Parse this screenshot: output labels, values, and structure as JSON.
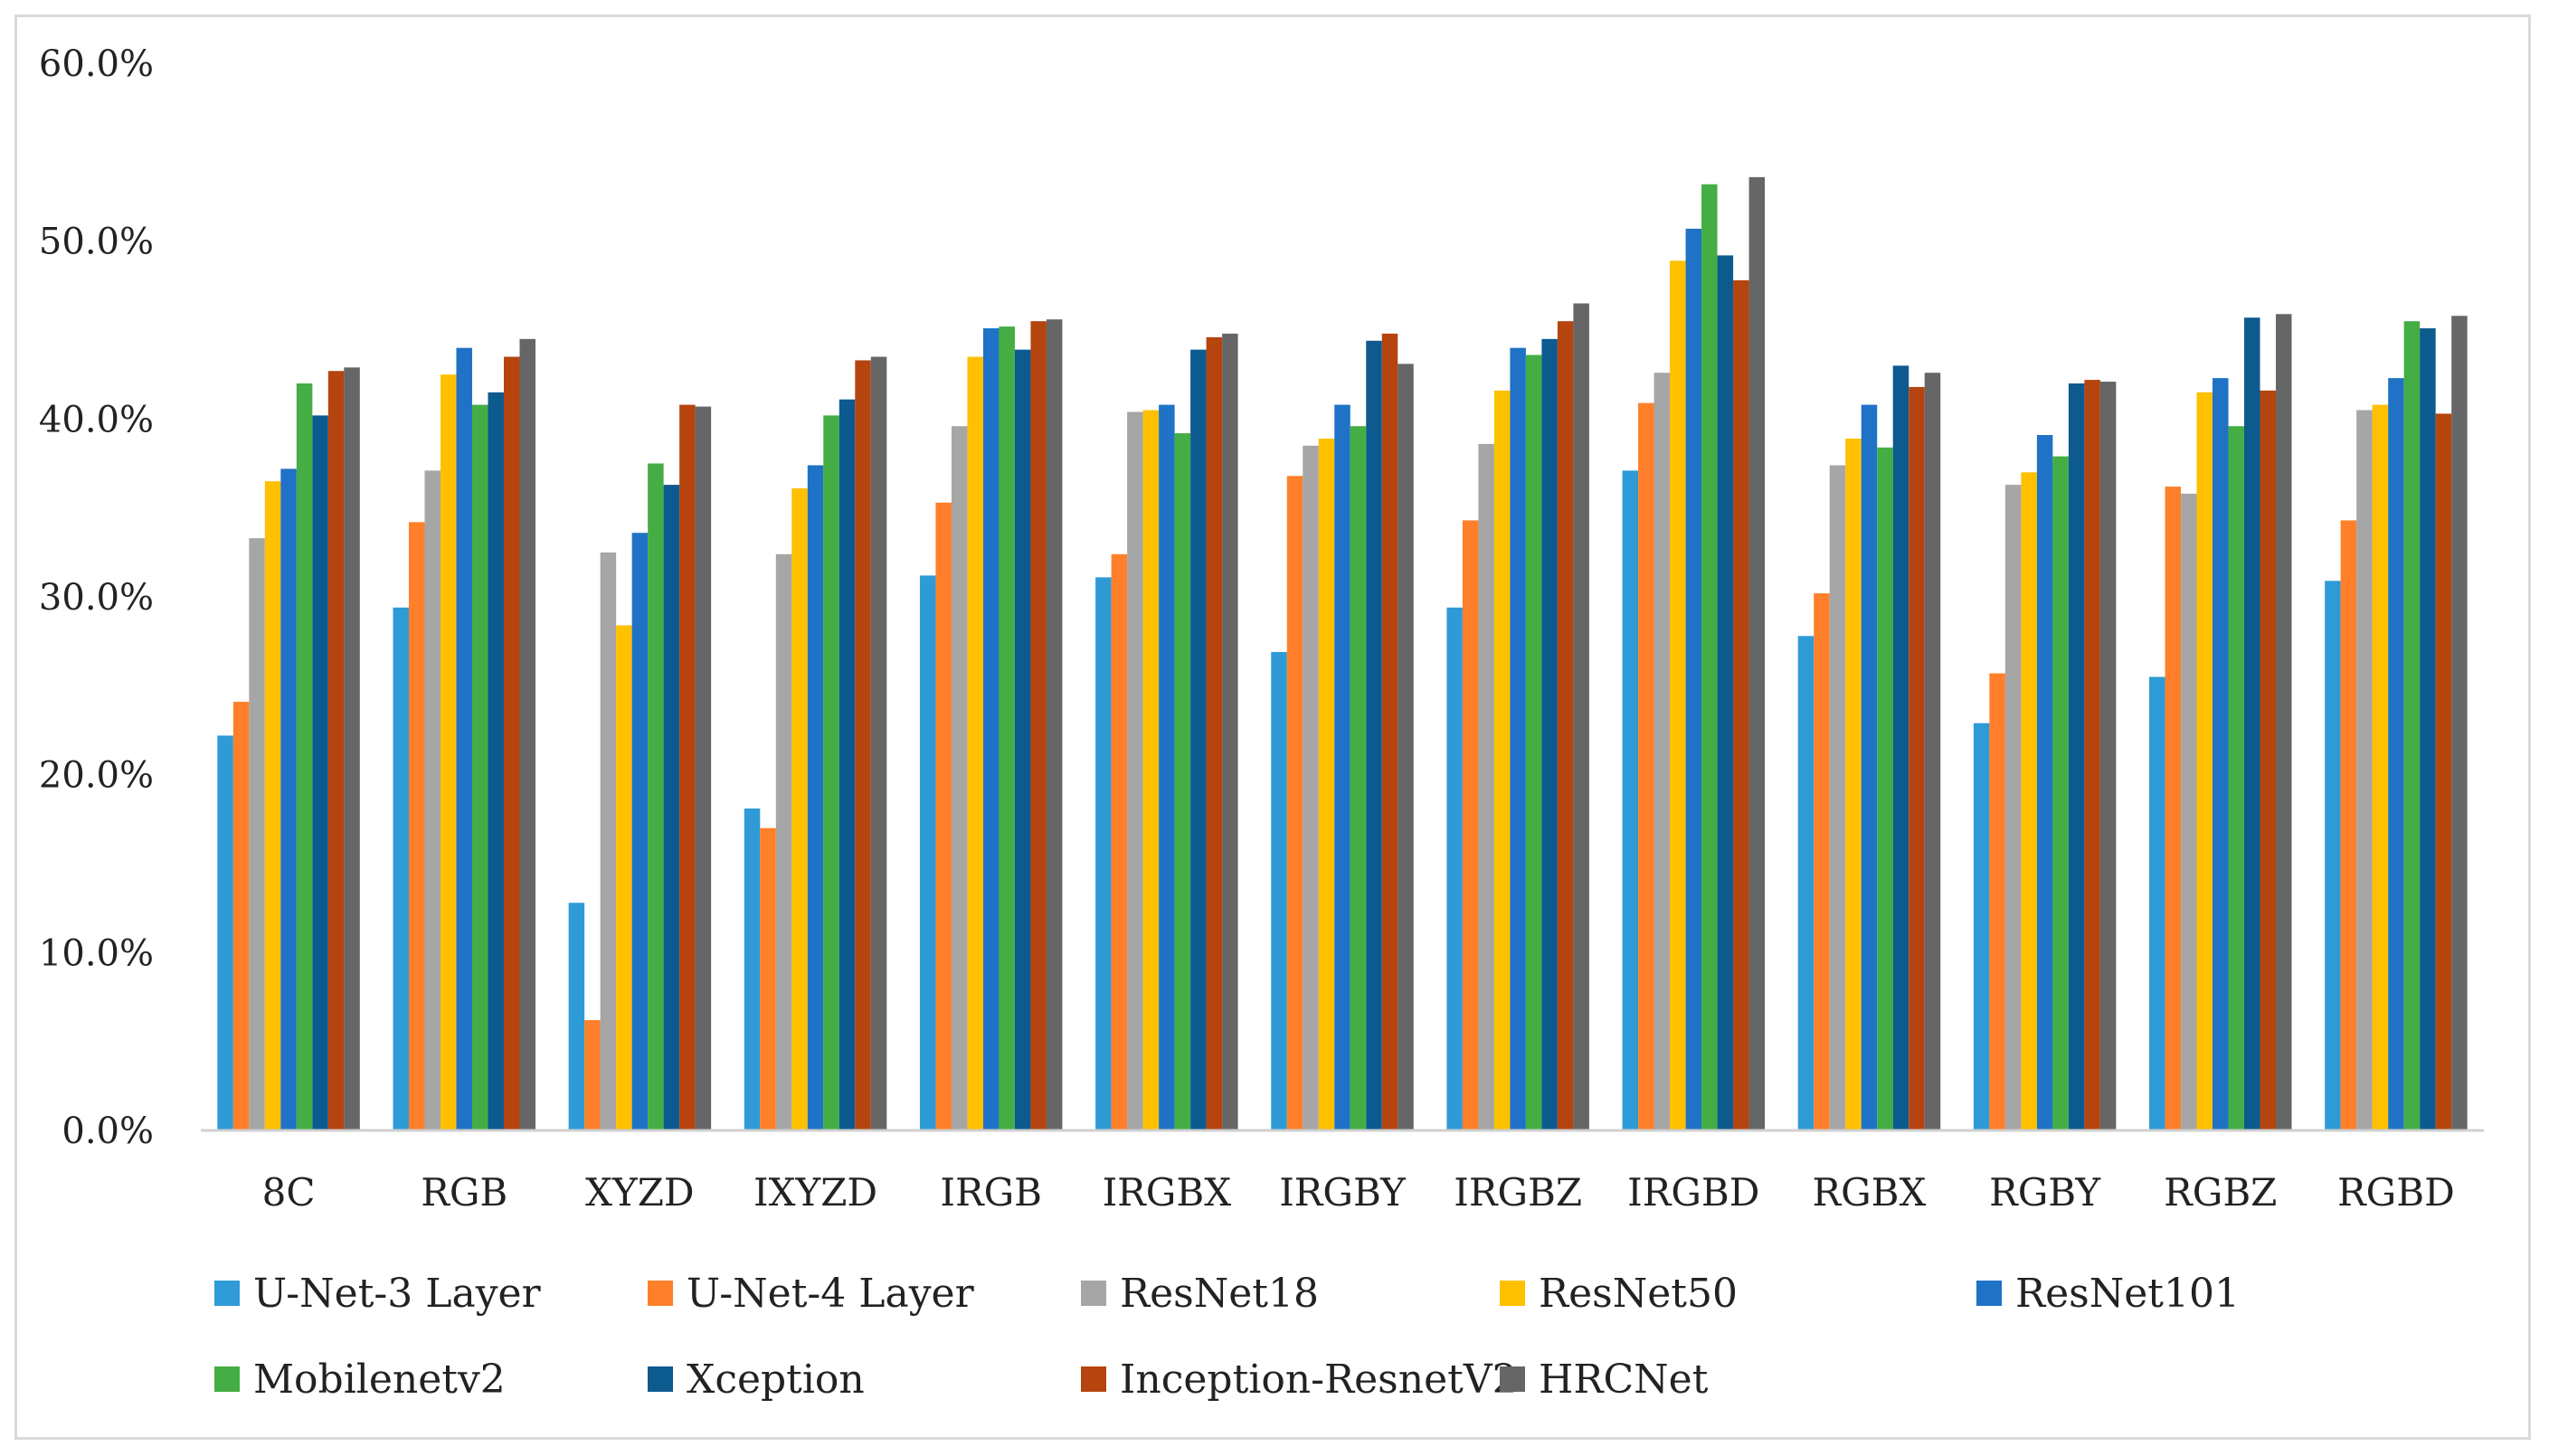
{
  "chart_data": {
    "type": "bar",
    "title": "",
    "xlabel": "",
    "ylabel": "",
    "ylim": [
      0,
      60
    ],
    "yticks": [
      "0.0%",
      "10.0%",
      "20.0%",
      "30.0%",
      "40.0%",
      "50.0%",
      "60.0%"
    ],
    "grid": false,
    "legend_position": "bottom",
    "categories": [
      "8C",
      "RGB",
      "XYZD",
      "IXYZD",
      "IRGB",
      "IRGBX",
      "IRGBY",
      "IRGBZ",
      "IRGBD",
      "RGBX",
      "RGBY",
      "RGBZ",
      "RGBD"
    ],
    "series": [
      {
        "name": "U-Net-3 Layer",
        "color": "#2e9bd6",
        "values": [
          22.2,
          29.4,
          12.8,
          18.1,
          31.2,
          31.1,
          26.9,
          29.4,
          37.1,
          27.8,
          22.9,
          25.5,
          30.9
        ]
      },
      {
        "name": "U-Net-4 Layer",
        "color": "#ff7f2a",
        "values": [
          24.1,
          34.2,
          6.2,
          17.0,
          35.3,
          32.4,
          36.8,
          34.3,
          40.9,
          30.2,
          25.7,
          36.2,
          34.3
        ]
      },
      {
        "name": "ResNet18",
        "color": "#a6a6a6",
        "values": [
          33.3,
          37.1,
          32.5,
          32.4,
          39.6,
          40.4,
          38.5,
          38.6,
          42.6,
          37.4,
          36.3,
          35.8,
          40.5
        ]
      },
      {
        "name": "ResNet50",
        "color": "#ffc000",
        "values": [
          36.5,
          42.5,
          28.4,
          36.1,
          43.5,
          40.5,
          38.9,
          41.6,
          48.9,
          38.9,
          37.0,
          41.5,
          40.8
        ]
      },
      {
        "name": "ResNet101",
        "color": "#1f72c6",
        "values": [
          37.2,
          44.0,
          33.6,
          37.4,
          45.1,
          40.8,
          40.8,
          44.0,
          50.7,
          40.8,
          39.1,
          42.3,
          42.3
        ]
      },
      {
        "name": "Mobilenetv2",
        "color": "#44ae44",
        "values": [
          42.0,
          40.8,
          37.5,
          40.2,
          45.2,
          39.2,
          39.6,
          43.6,
          53.2,
          38.4,
          37.9,
          39.6,
          45.5
        ]
      },
      {
        "name": "Xception",
        "color": "#0d5a8f",
        "values": [
          40.2,
          41.5,
          36.3,
          41.1,
          43.9,
          43.9,
          44.4,
          44.5,
          49.2,
          43.0,
          42.0,
          45.7,
          45.1
        ]
      },
      {
        "name": "Inception-ResnetV2",
        "color": "#b5440e",
        "values": [
          42.7,
          43.5,
          40.8,
          43.3,
          45.5,
          44.6,
          44.8,
          45.5,
          47.8,
          41.8,
          42.2,
          41.6,
          40.3
        ]
      },
      {
        "name": "HRCNet",
        "color": "#666666",
        "values": [
          42.9,
          44.5,
          40.7,
          43.5,
          45.6,
          44.8,
          43.1,
          46.5,
          53.6,
          42.6,
          42.1,
          45.9,
          45.8
        ]
      }
    ]
  }
}
